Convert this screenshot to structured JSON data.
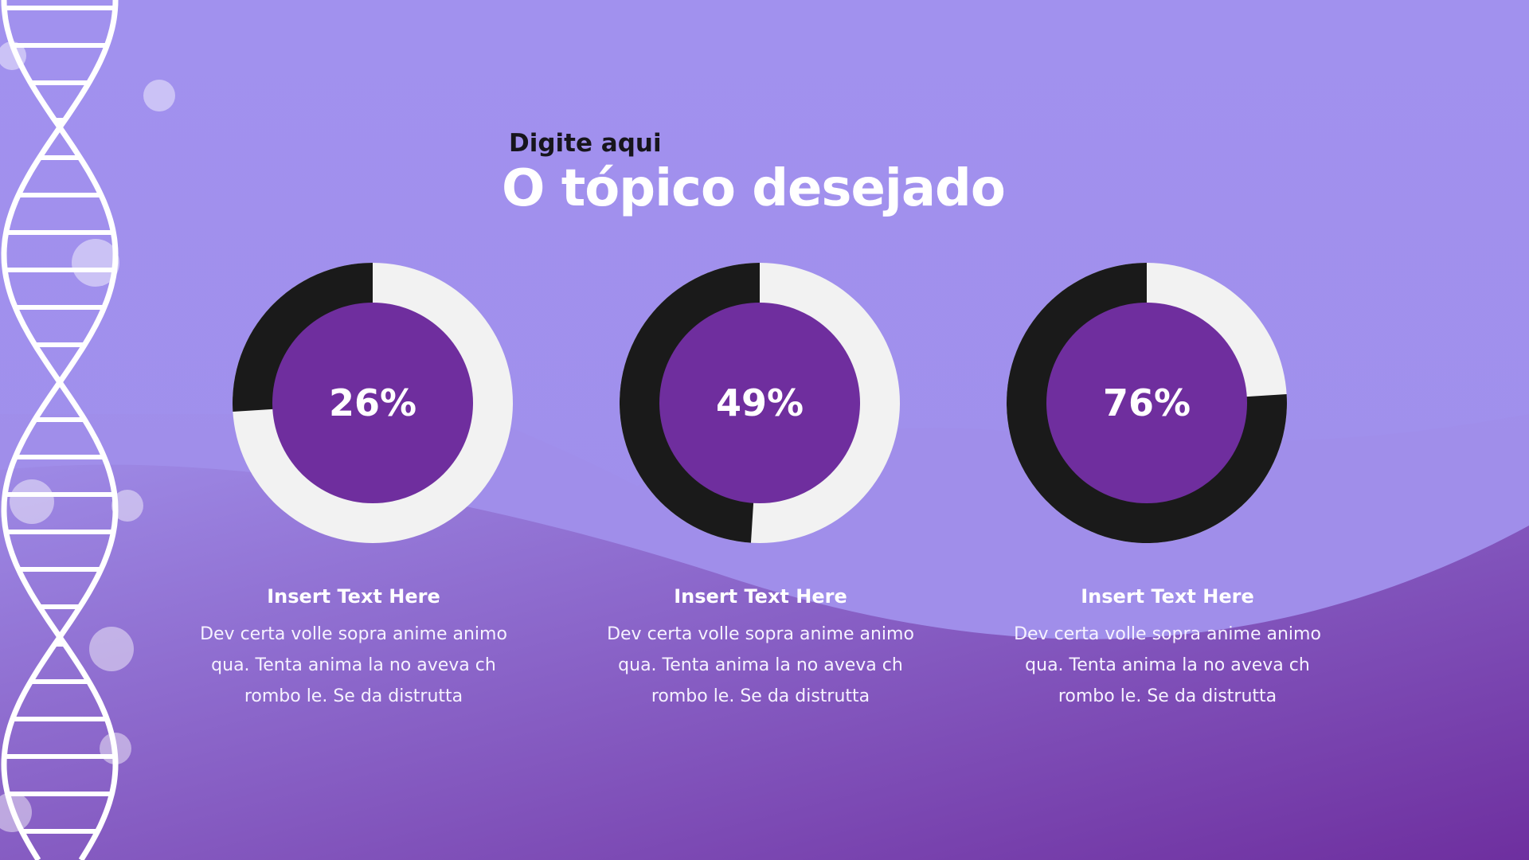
{
  "slide": {
    "subtitle": "Digite aqui",
    "title": "O tópico desejado"
  },
  "colors": {
    "background": "#a191ee",
    "wave": "#7a3fb0",
    "donut_fill": "#1a1a1a",
    "donut_track": "#f2f2f2",
    "donut_center": "#6f2e9e"
  },
  "chart_data": [
    {
      "type": "pie",
      "variant": "donut",
      "value_percent": 26,
      "label": "26%"
    },
    {
      "type": "pie",
      "variant": "donut",
      "value_percent": 49,
      "label": "49%"
    },
    {
      "type": "pie",
      "variant": "donut",
      "value_percent": 76,
      "label": "76%"
    }
  ],
  "captions": [
    {
      "title": "Insert Text Here",
      "body": "Dev certa volle sopra anime animo qua. Tenta anima la no aveva ch rombo le. Se da distrutta"
    },
    {
      "title": "Insert Text Here",
      "body": "Dev certa volle sopra anime animo qua. Tenta anima la no aveva ch rombo le. Se da distrutta"
    },
    {
      "title": "Insert Text Here",
      "body": "Dev certa volle sopra anime animo qua. Tenta anima la no aveva ch rombo le. Se da distrutta"
    }
  ],
  "decoration": {
    "left_graphic": "dna-helix-icon",
    "bubbles": "bubble-icon"
  }
}
